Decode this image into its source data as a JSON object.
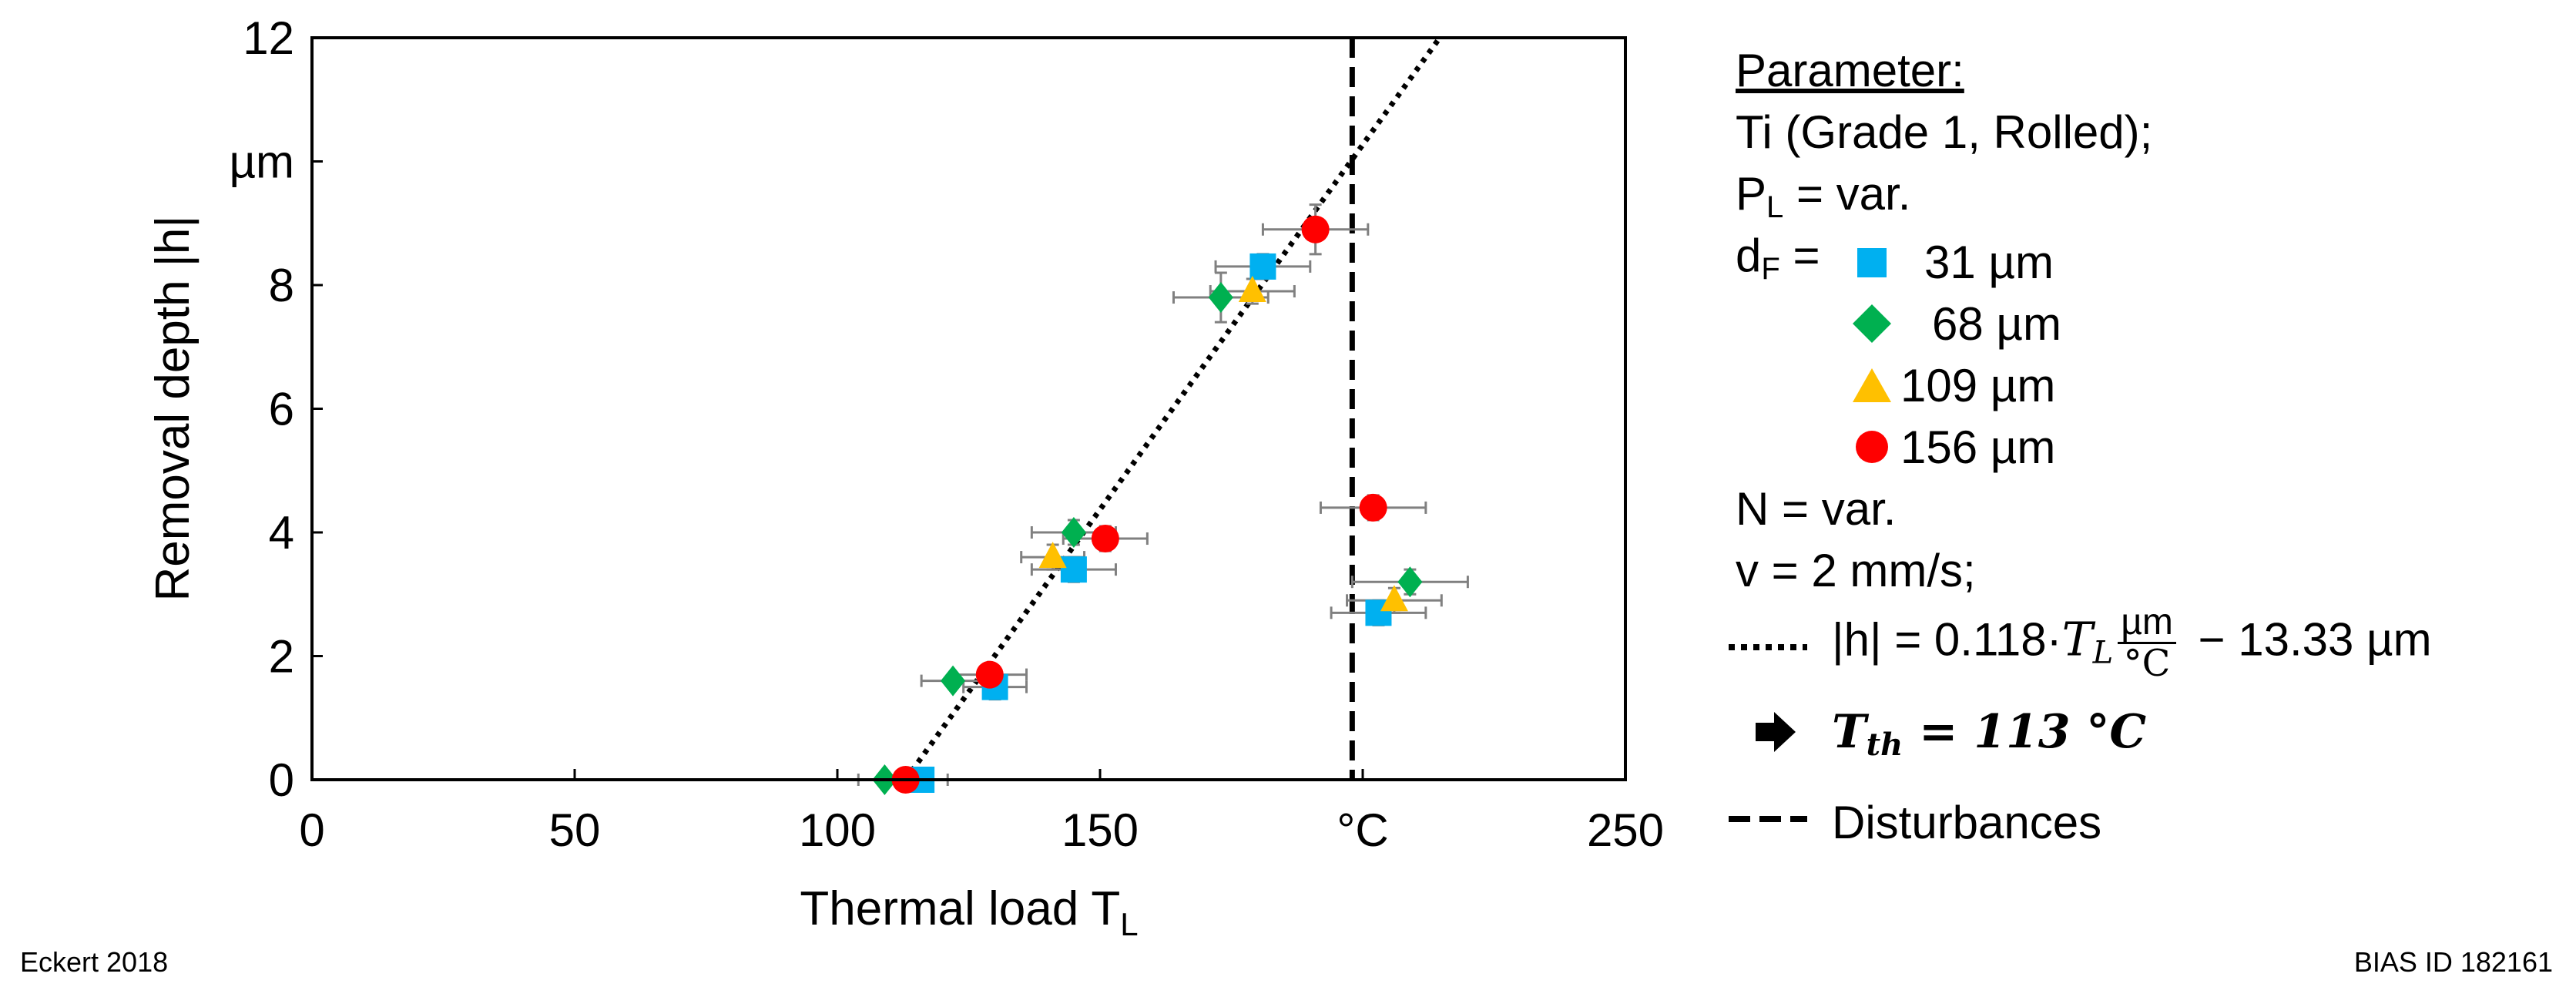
{
  "chart_data": {
    "type": "scatter",
    "xlabel": "Thermal load T",
    "xlabel_sub": "L",
    "ylabel": "Removal depth |h|",
    "y_unit_label": "µm",
    "x_unit_label": "°C",
    "xlim": [
      0,
      250
    ],
    "ylim": [
      0,
      12
    ],
    "x_ticks": [
      "0",
      "50",
      "100",
      "150",
      "250"
    ],
    "y_ticks": [
      "0",
      "2",
      "4",
      "6",
      "8",
      "12"
    ],
    "grid": false,
    "series": [
      {
        "name": "31 µm",
        "marker": "square",
        "color": "#00B0F0",
        "points": [
          {
            "x": 116,
            "y": 0.0,
            "xerr": 5,
            "yerr": 0.1
          },
          {
            "x": 130,
            "y": 1.5,
            "xerr": 6,
            "yerr": 0.2
          },
          {
            "x": 145,
            "y": 3.4,
            "xerr": 8,
            "yerr": 0.2
          },
          {
            "x": 181,
            "y": 8.3,
            "xerr": 9,
            "yerr": 0.2
          },
          {
            "x": 203,
            "y": 2.7,
            "xerr": 9,
            "yerr": 0.2
          }
        ]
      },
      {
        "name": "68 µm",
        "marker": "diamond",
        "color": "#00B050",
        "points": [
          {
            "x": 109,
            "y": 0.0,
            "xerr": 5,
            "yerr": 0.1
          },
          {
            "x": 122,
            "y": 1.6,
            "xerr": 6,
            "yerr": 0.1
          },
          {
            "x": 145,
            "y": 4.0,
            "xerr": 8,
            "yerr": 0.2
          },
          {
            "x": 173,
            "y": 7.8,
            "xerr": 9,
            "yerr": 0.4
          },
          {
            "x": 209,
            "y": 3.2,
            "xerr": 11,
            "yerr": 0.2
          }
        ]
      },
      {
        "name": "109 µm",
        "marker": "triangle",
        "color": "#FFC000",
        "points": [
          {
            "x": 141,
            "y": 3.6,
            "xerr": 6,
            "yerr": 0.2
          },
          {
            "x": 179,
            "y": 7.9,
            "xerr": 8,
            "yerr": 0.2
          },
          {
            "x": 206,
            "y": 2.9,
            "xerr": 9,
            "yerr": 0.2
          }
        ]
      },
      {
        "name": "156 µm",
        "marker": "circle",
        "color": "#FF0000",
        "points": [
          {
            "x": 113,
            "y": 0.0,
            "xerr": 5,
            "yerr": 0.1
          },
          {
            "x": 129,
            "y": 1.7,
            "xerr": 7,
            "yerr": 0.1
          },
          {
            "x": 151,
            "y": 3.9,
            "xerr": 8,
            "yerr": 0.2
          },
          {
            "x": 191,
            "y": 8.9,
            "xerr": 10,
            "yerr": 0.4
          },
          {
            "x": 202,
            "y": 4.4,
            "xerr": 10,
            "yerr": 0.2
          }
        ]
      }
    ],
    "fit_line": {
      "slope": 0.118,
      "intercept": -13.33,
      "style": "dotted"
    },
    "disturbance_line": {
      "x": 198,
      "style": "dashed"
    }
  },
  "legend": {
    "title": "Parameter:",
    "material": "Ti (Grade 1, Rolled);",
    "power_label": "P",
    "power_sub": "L",
    "power_value": " = var.",
    "diameter_label": "d",
    "diameter_sub": "F",
    "diameter_eq": " =",
    "sizes": [
      "31 µm",
      "68 µm",
      "109 µm",
      "156 µm"
    ],
    "n_value": "N = var.",
    "v_value": "v = 2 mm/s;",
    "fit_left": "|h| = 0.118·",
    "fit_var": "T",
    "fit_var_sub": "L",
    "fit_num": "µm",
    "fit_den": "°C",
    "fit_right": " − 13.33 µm",
    "threshold_label": "T",
    "threshold_sub": "th",
    "threshold_value": " = 113 °C",
    "disturbances": "Disturbances"
  },
  "footer": {
    "left": "Eckert 2018",
    "right": "BIAS ID 182161"
  }
}
